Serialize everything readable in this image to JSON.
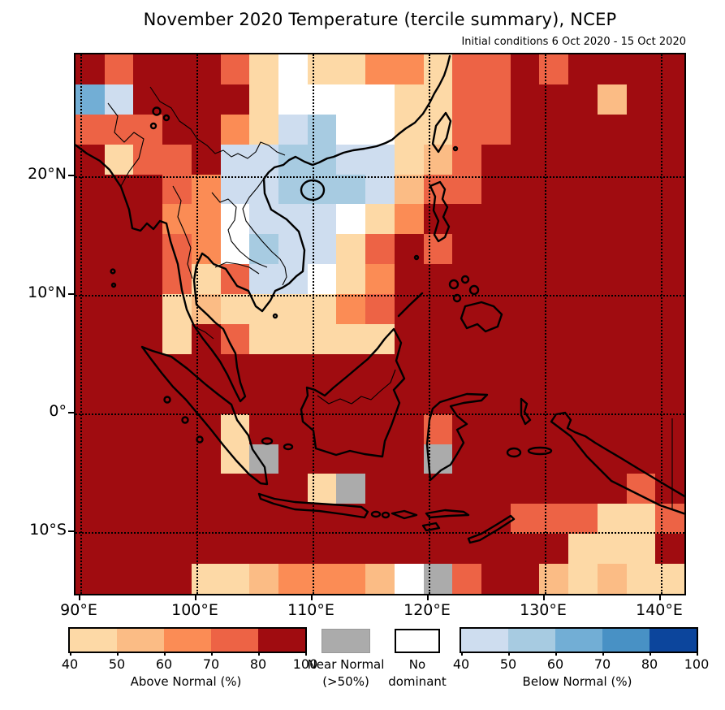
{
  "title": "November 2020 Temperature (tercile summary), NCEP",
  "subtitle": "Initial conditions 6 Oct 2020 - 15 Oct 2020",
  "axes": {
    "y_ticks": [
      {
        "label": "20°N",
        "lat": 20
      },
      {
        "label": "10°N",
        "lat": 10
      },
      {
        "label": "0°",
        "lat": 0
      },
      {
        "label": "10°S",
        "lat": -10
      }
    ],
    "x_ticks": [
      {
        "label": "90°E",
        "lon": 90
      },
      {
        "label": "100°E",
        "lon": 100
      },
      {
        "label": "110°E",
        "lon": 110
      },
      {
        "label": "120°E",
        "lon": 120
      },
      {
        "label": "130°E",
        "lon": 130
      },
      {
        "label": "140°E",
        "lon": 140
      }
    ]
  },
  "legend": {
    "above": {
      "caption": "Above Normal (%)",
      "ticks": [
        "40",
        "50",
        "60",
        "70",
        "80",
        "100"
      ],
      "colors": [
        "#FDD9A6",
        "#FBBC85",
        "#FB8C55",
        "#ED6345",
        "#A00C10"
      ]
    },
    "near": {
      "line1": "Near Normal",
      "line2": "(>50%)",
      "color": "#ABABAB"
    },
    "none": {
      "line1": "No",
      "line2": "dominant",
      "color": "#FFFFFF"
    },
    "below": {
      "caption": "Below Normal (%)",
      "ticks": [
        "40",
        "50",
        "60",
        "70",
        "80",
        "100"
      ],
      "colors": [
        "#CEDDEF",
        "#A7CBE1",
        "#72AED5",
        "#4891C5",
        "#0C459C"
      ]
    }
  },
  "chart_data": {
    "type": "heatmap",
    "title": "November 2020 Temperature (tercile summary), NCEP",
    "subtitle": "Initial conditions 6 Oct 2020 - 15 Oct 2020",
    "lon_range": [
      89.6,
      142.3
    ],
    "lat_range": [
      -15.5,
      30.3
    ],
    "cell_size_deg": 2.5,
    "grid_note": "18 rows (N to S, 30.3N..15.5S) x 21 cols (W to E, 89.6E..142.3E); one char per 2.5-deg cell",
    "palette": {
      "D": "#A00C10",
      "R": "#ED6345",
      "O": "#FB8C55",
      "o": "#FBBC85",
      "p": "#FDD9A6",
      "W": "#FFFFFF",
      "G": "#ABABAB",
      "b": "#CEDDEF",
      "B": "#A7CBE1",
      "M": "#72AED5"
    },
    "palette_meaning": {
      "D": "Above Normal 80-100%",
      "R": "Above Normal 70-80%",
      "O": "Above Normal 60-70%",
      "o": "Above Normal 50-60%",
      "p": "Above Normal 40-50%",
      "W": "No dominant",
      "G": "Near Normal (>50%)",
      "b": "Below Normal 40-50%",
      "B": "Below Normal 50-60%",
      "M": "Below Normal 60-70%"
    },
    "grid_rows": [
      "DRDDDRpWppOOpRRDRDDDD",
      "MbDDDDpWWWWppRRDDDoDD",
      "RRRDDOpbBWWppRRDDDDDD",
      "DpRRDbbBBbbpoRDDDDDDD",
      "DDDRObbBBBboRRDDDDDDD",
      "DDDOOWbbbWpODDDDDDDDD",
      "DDDROWBbbpRDRDDDDDDDD",
      "DDDRpRbbWpODDDDDDDDDD",
      "DDDpoppppORDDDDDDDDDD",
      "DDDpDRpppppDDDDDDDDDD",
      "DDDDDDDDDDDDDDDDDDDDD",
      "DDDDDDDDDDDDDDDDDDDDD",
      "DDDDDpDDDDDDRDDDDDDDD",
      "DDDDDpGDDDDDGDDDDDDDD",
      "DDDDDDDDpGDDDDDDDDDRD",
      "DDDDDDDDDDDDDDDRRRppR",
      "DDDDDDDDDDDDDDDDDpppD",
      "DDDDppoOOOoWGRDDopopp"
    ],
    "gridlines": {
      "lons": [
        90,
        100,
        110,
        120,
        130,
        140
      ],
      "lats": [
        20,
        10,
        0,
        -10
      ],
      "style": "dotted black"
    },
    "legend_position": "bottom"
  }
}
